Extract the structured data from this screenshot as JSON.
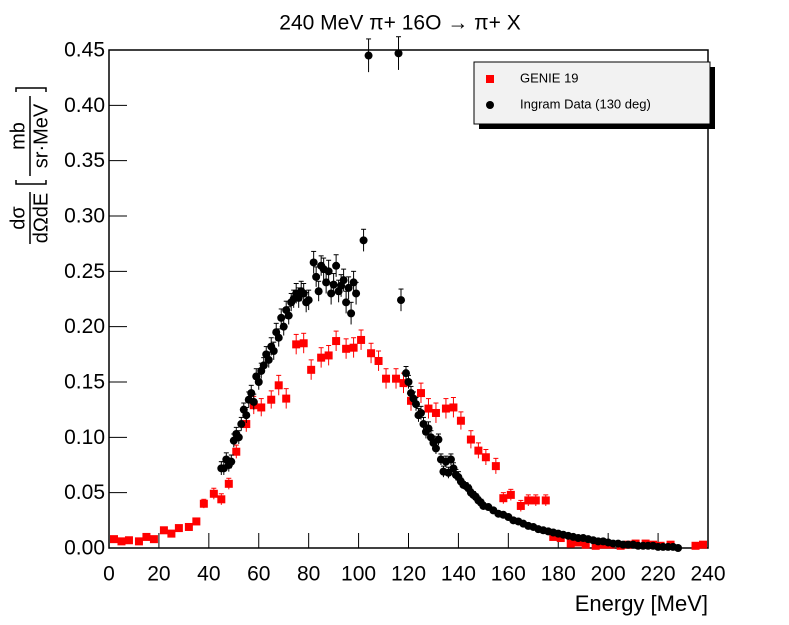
{
  "chart_data": {
    "type": "scatter",
    "title": "240 MeV π+ 16O → π+ X",
    "x_label": "Energy [MeV]",
    "y_label": {
      "numerator": "dσ",
      "denominator": "dΩdE",
      "unit_numerator": "mb",
      "unit_denominator": "sr·MeV"
    },
    "xlim": [
      0,
      240
    ],
    "ylim": [
      0,
      0.45
    ],
    "xticks": [
      0,
      20,
      40,
      60,
      80,
      100,
      120,
      140,
      160,
      180,
      200,
      220,
      240
    ],
    "yticks": [
      {
        "value": 0,
        "label": "0.00"
      },
      {
        "value": 0.05,
        "label": "0.05"
      },
      {
        "value": 0.1,
        "label": "0.10"
      },
      {
        "value": 0.15,
        "label": "0.15"
      },
      {
        "value": 0.2,
        "label": "0.20"
      },
      {
        "value": 0.25,
        "label": "0.25"
      },
      {
        "value": 0.3,
        "label": "0.30"
      },
      {
        "value": 0.35,
        "label": "0.35"
      },
      {
        "value": 0.4,
        "label": "0.40"
      },
      {
        "value": 0.45,
        "label": "0.45"
      }
    ],
    "legend": "top-right",
    "series": [
      {
        "name": "GENIE 19",
        "color": "#ff0000",
        "marker": "square",
        "x": [
          2,
          5,
          8,
          12,
          15,
          18,
          22,
          25,
          28,
          32,
          35,
          38,
          42,
          45,
          48,
          51,
          55,
          58,
          61,
          65,
          68,
          71,
          75,
          78,
          81,
          85,
          88,
          91,
          95,
          98,
          101,
          105,
          108,
          111,
          115,
          118,
          121,
          125,
          128,
          131,
          135,
          138,
          141,
          145,
          148,
          151,
          155,
          158,
          161,
          165,
          168,
          171,
          175,
          178,
          181,
          185,
          188,
          191,
          195,
          198,
          201,
          205,
          208,
          211,
          215,
          218,
          221,
          225,
          235,
          238
        ],
        "values": [
          0.008,
          0.006,
          0.007,
          0.006,
          0.01,
          0.008,
          0.016,
          0.013,
          0.018,
          0.019,
          0.024,
          0.04,
          0.049,
          0.044,
          0.058,
          0.087,
          0.112,
          0.129,
          0.127,
          0.134,
          0.147,
          0.135,
          0.184,
          0.185,
          0.161,
          0.172,
          0.174,
          0.187,
          0.18,
          0.181,
          0.188,
          0.176,
          0.169,
          0.153,
          0.153,
          0.149,
          0.133,
          0.14,
          0.126,
          0.122,
          0.126,
          0.127,
          0.115,
          0.098,
          0.088,
          0.082,
          0.074,
          0.045,
          0.048,
          0.038,
          0.043,
          0.043,
          0.043,
          0.01,
          0.009,
          0.004,
          0.005,
          0.003,
          0.002,
          0.003,
          0.003,
          0.002,
          0.003,
          0.004,
          0.004,
          0.003,
          0.002,
          0.003,
          0.002,
          0.003
        ],
        "errors": [
          0.002,
          0.002,
          0.002,
          0.002,
          0.002,
          0.002,
          0.002,
          0.002,
          0.002,
          0.002,
          0.003,
          0.004,
          0.005,
          0.005,
          0.005,
          0.006,
          0.007,
          0.008,
          0.008,
          0.008,
          0.009,
          0.009,
          0.009,
          0.009,
          0.009,
          0.009,
          0.009,
          0.009,
          0.009,
          0.009,
          0.009,
          0.009,
          0.009,
          0.009,
          0.009,
          0.009,
          0.009,
          0.009,
          0.009,
          0.009,
          0.009,
          0.009,
          0.008,
          0.008,
          0.007,
          0.007,
          0.007,
          0.005,
          0.005,
          0.005,
          0.005,
          0.005,
          0.005,
          0.002,
          0.002,
          0.001,
          0.001,
          0.001,
          0.001,
          0.001,
          0.001,
          0.001,
          0.001,
          0.001,
          0.001,
          0.001,
          0.001,
          0.001,
          0.001,
          0.001
        ]
      },
      {
        "name": "Ingram Data (130 deg)",
        "color": "#000000",
        "marker": "circle",
        "x": [
          45,
          46,
          47,
          48,
          49,
          50,
          51,
          52,
          53,
          54,
          55,
          56,
          57,
          58,
          59,
          60,
          61,
          62,
          63,
          64,
          65,
          66,
          67,
          68,
          69,
          70,
          71,
          72,
          73,
          74,
          75,
          76,
          77,
          78,
          79,
          80,
          82,
          83,
          84,
          85,
          86,
          87,
          88,
          89,
          90,
          91,
          92,
          93,
          94,
          95,
          96,
          97,
          98,
          99,
          102,
          104,
          116,
          117,
          119,
          120,
          121,
          122,
          123,
          124,
          125,
          126,
          127,
          128,
          129,
          130,
          131,
          132,
          133,
          134,
          135,
          136,
          137,
          138,
          139,
          140,
          141,
          142,
          143,
          144,
          145,
          146,
          147,
          148,
          149,
          150,
          152,
          154,
          156,
          158,
          160,
          162,
          164,
          166,
          168,
          170,
          172,
          174,
          176,
          178,
          180,
          182,
          184,
          186,
          188,
          190,
          192,
          194,
          196,
          198,
          200,
          202,
          204,
          206,
          208,
          210,
          212,
          214,
          216,
          218,
          220,
          222,
          224,
          226,
          228
        ],
        "values": [
          0.072,
          0.072,
          0.08,
          0.075,
          0.078,
          0.097,
          0.103,
          0.1,
          0.112,
          0.125,
          0.12,
          0.134,
          0.14,
          0.132,
          0.155,
          0.15,
          0.16,
          0.165,
          0.175,
          0.17,
          0.182,
          0.178,
          0.195,
          0.19,
          0.208,
          0.2,
          0.215,
          0.21,
          0.222,
          0.225,
          0.23,
          0.226,
          0.232,
          0.23,
          0.222,
          0.224,
          0.258,
          0.245,
          0.232,
          0.255,
          0.252,
          0.24,
          0.25,
          0.23,
          0.238,
          0.255,
          0.232,
          0.237,
          0.242,
          0.222,
          0.235,
          0.212,
          0.24,
          0.23,
          0.278,
          0.445,
          0.447,
          0.224,
          0.158,
          0.15,
          0.14,
          0.135,
          0.13,
          0.12,
          0.122,
          0.112,
          0.105,
          0.108,
          0.1,
          0.095,
          0.09,
          0.098,
          0.08,
          0.069,
          0.078,
          0.068,
          0.08,
          0.072,
          0.066,
          0.064,
          0.06,
          0.057,
          0.056,
          0.054,
          0.05,
          0.048,
          0.046,
          0.043,
          0.041,
          0.038,
          0.037,
          0.034,
          0.031,
          0.03,
          0.028,
          0.025,
          0.024,
          0.022,
          0.02,
          0.019,
          0.017,
          0.016,
          0.015,
          0.014,
          0.013,
          0.012,
          0.011,
          0.01,
          0.009,
          0.009,
          0.008,
          0.007,
          0.006,
          0.006,
          0.005,
          0.004,
          0.004,
          0.003,
          0.003,
          0.003,
          0.002,
          0.002,
          0.002,
          0.002,
          0.001,
          0.001,
          0.001,
          0.001,
          0
        ],
        "errors": [
          0.006,
          0.006,
          0.006,
          0.006,
          0.006,
          0.006,
          0.006,
          0.006,
          0.006,
          0.006,
          0.007,
          0.007,
          0.007,
          0.007,
          0.007,
          0.007,
          0.007,
          0.007,
          0.007,
          0.007,
          0.008,
          0.008,
          0.008,
          0.008,
          0.008,
          0.008,
          0.008,
          0.008,
          0.008,
          0.008,
          0.009,
          0.009,
          0.009,
          0.009,
          0.009,
          0.009,
          0.01,
          0.009,
          0.009,
          0.009,
          0.01,
          0.01,
          0.01,
          0.01,
          0.01,
          0.01,
          0.01,
          0.01,
          0.01,
          0.01,
          0.01,
          0.01,
          0.01,
          0.01,
          0.01,
          0.015,
          0.015,
          0.01,
          0.006,
          0.006,
          0.006,
          0.006,
          0.006,
          0.006,
          0.006,
          0.006,
          0.006,
          0.006,
          0.006,
          0.006,
          0.005,
          0.005,
          0.005,
          0.005,
          0.005,
          0.005,
          0.005,
          0.005,
          0.005,
          0.005,
          0.003,
          0.003,
          0.003,
          0.003,
          0.003,
          0.003,
          0.003,
          0.003,
          0.003,
          0.003,
          0.002,
          0.002,
          0.002,
          0.002,
          0.002,
          0.002,
          0.002,
          0.002,
          0.002,
          0.002,
          0.001,
          0.001,
          0.001,
          0.001,
          0.001,
          0.001,
          0.001,
          0.001,
          0.001,
          0.001,
          0.001,
          0.001,
          0.001,
          0.001,
          0.001,
          0.001,
          0.001,
          0.001,
          0.001,
          0.001,
          0.001,
          0.001,
          0.001,
          0.001,
          0.001,
          0.001,
          0.001,
          0.001,
          0.001
        ]
      }
    ]
  }
}
